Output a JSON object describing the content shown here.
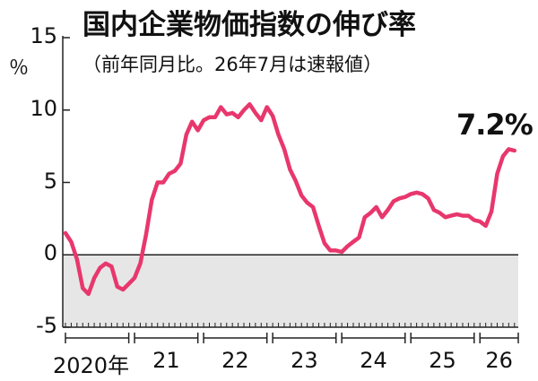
{
  "chart_data": {
    "type": "line",
    "title": "国内企業物価指数の伸び率",
    "subtitle": "（前年同月比。26年7月は速報値）",
    "ylabel": "％",
    "ylim": [
      -5,
      15
    ],
    "yticks": [
      -5,
      0,
      5,
      10,
      15
    ],
    "grid": false,
    "x_tick_labels": [
      "2020年",
      "21",
      "22",
      "23",
      "24",
      "25",
      "26"
    ],
    "annotation": "7.2%",
    "series": [
      {
        "color": "#e8376d",
        "x": [
          "2020-01",
          "2020-02",
          "2020-03",
          "2020-04",
          "2020-05",
          "2020-06",
          "2020-07",
          "2020-08",
          "2020-09",
          "2020-10",
          "2020-11",
          "2020-12",
          "2021-01",
          "2021-02",
          "2021-03",
          "2021-04",
          "2021-05",
          "2021-06",
          "2021-07",
          "2021-08",
          "2021-09",
          "2021-10",
          "2021-11",
          "2021-12",
          "2022-01",
          "2022-02",
          "2022-03",
          "2022-04",
          "2022-05",
          "2022-06",
          "2022-07",
          "2022-08",
          "2022-09",
          "2022-10",
          "2022-11",
          "2022-12",
          "2023-01",
          "2023-02",
          "2023-03",
          "2023-04",
          "2023-05",
          "2023-06",
          "2023-07",
          "2023-08",
          "2023-09",
          "2023-10",
          "2023-11",
          "2023-12",
          "2024-01",
          "2024-02",
          "2024-03",
          "2024-04",
          "2024-05",
          "2024-06",
          "2024-07",
          "2024-08",
          "2024-09",
          "2024-10",
          "2024-11",
          "2024-12",
          "2025-01",
          "2025-02",
          "2025-03",
          "2025-04",
          "2025-05",
          "2025-06",
          "2025-07",
          "2025-08",
          "2025-09",
          "2025-10",
          "2025-11",
          "2025-12",
          "2026-01",
          "2026-02",
          "2026-03",
          "2026-04",
          "2026-05",
          "2026-06",
          "2026-07"
        ],
        "values": [
          1.5,
          0.9,
          -0.3,
          -2.3,
          -2.7,
          -1.6,
          -0.9,
          -0.6,
          -0.8,
          -2.2,
          -2.4,
          -2.0,
          -1.6,
          -0.6,
          1.4,
          3.8,
          5.0,
          5.0,
          5.6,
          5.8,
          6.3,
          8.3,
          9.2,
          8.6,
          9.3,
          9.5,
          9.5,
          10.2,
          9.7,
          9.8,
          9.5,
          10.0,
          10.4,
          9.8,
          9.3,
          10.2,
          9.6,
          8.3,
          7.3,
          5.9,
          5.1,
          4.1,
          3.6,
          3.3,
          2.0,
          0.8,
          0.3,
          0.3,
          0.2,
          0.6,
          0.9,
          1.2,
          2.6,
          2.9,
          3.3,
          2.6,
          3.1,
          3.7,
          3.9,
          4.0,
          4.2,
          4.3,
          4.2,
          3.9,
          3.1,
          2.9,
          2.6,
          2.7,
          2.8,
          2.7,
          2.7,
          2.4,
          2.3,
          2.0,
          3.0,
          5.6,
          6.8,
          7.3,
          7.2
        ]
      }
    ]
  }
}
